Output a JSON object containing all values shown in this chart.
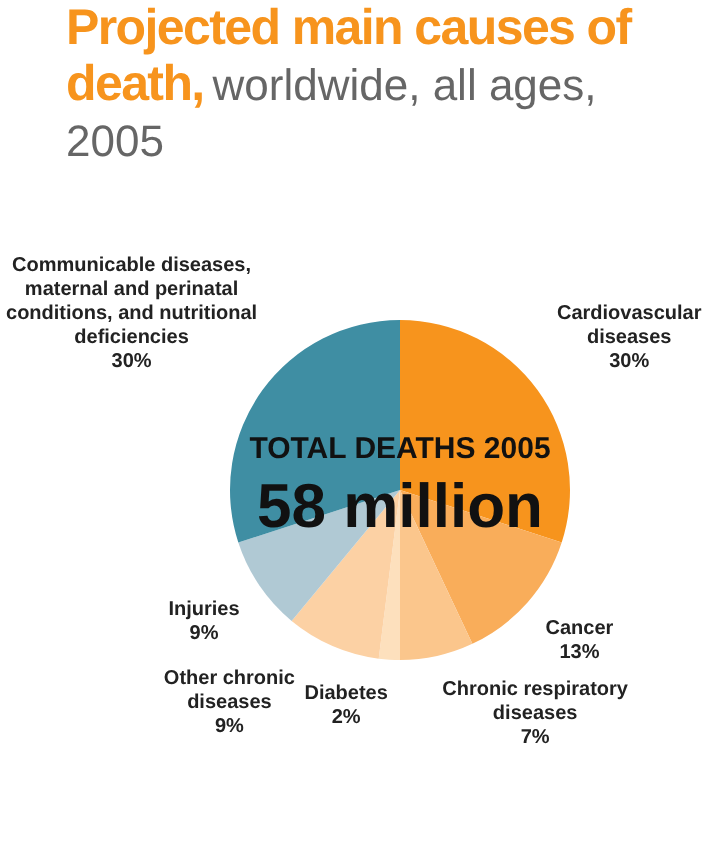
{
  "chart_data": {
    "type": "pie",
    "title": "Projected main causes of death,",
    "subtitle": "worldwide, all ages, 2005",
    "categories": [
      "Cardiovascular diseases",
      "Cancer",
      "Chronic respiratory diseases",
      "Diabetes",
      "Other chronic diseases",
      "Injuries",
      "Communicable diseases, maternal and perinatal conditions, and nutritional deficiencies"
    ],
    "values": [
      30,
      13,
      7,
      2,
      9,
      9,
      30
    ],
    "value_labels": [
      "30%",
      "13%",
      "7%",
      "2%",
      "9%",
      "9%",
      "30%"
    ],
    "colors": [
      "#f7941d",
      "#f9ad5a",
      "#fbc68c",
      "#fde0bd",
      "#fcd1a4",
      "#b0c9d4",
      "#3f8ea3"
    ],
    "annotations": [
      "TOTAL DEATHS 2005",
      "58 million"
    ],
    "legend": false
  }
}
